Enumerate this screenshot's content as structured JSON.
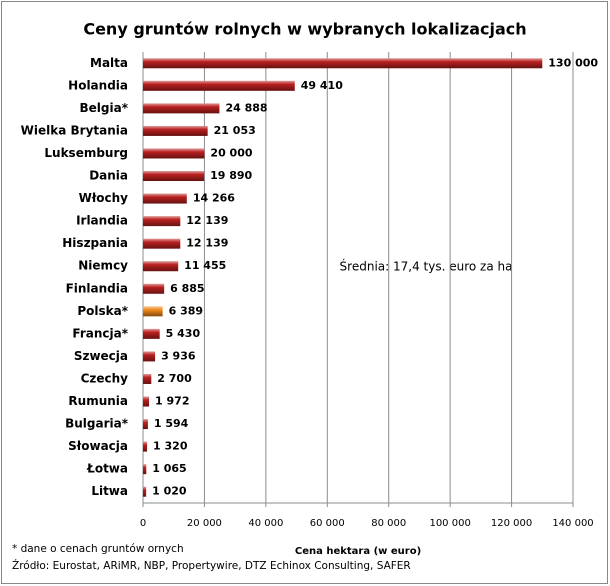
{
  "chart_data": {
    "type": "bar",
    "orientation": "horizontal",
    "title": "Ceny gruntów rolnych w wybranych lokalizacjach",
    "categories": [
      "Malta",
      "Holandia",
      "Belgia*",
      "Wielka Brytania",
      "Luksemburg",
      "Dania",
      "Włochy",
      "Irlandia",
      "Hiszpania",
      "Niemcy",
      "Finlandia",
      "Polska*",
      "Francja*",
      "Szwecja",
      "Czechy",
      "Rumunia",
      "Bulgaria*",
      "Słowacja",
      "Łotwa",
      "Litwa"
    ],
    "values": [
      130000,
      49410,
      24888,
      21053,
      20000,
      19890,
      14266,
      12139,
      12139,
      11455,
      6885,
      6389,
      5430,
      3936,
      2700,
      1972,
      1594,
      1320,
      1065,
      1020
    ],
    "value_labels": [
      "130 000",
      "49 410",
      "24 888",
      "21 053",
      "20 000",
      "19 890",
      "14 266",
      "12 139",
      "12 139",
      "11 455",
      "6 885",
      "6 389",
      "5 430",
      "3 936",
      "2 700",
      "1 972",
      "1 594",
      "1 320",
      "1 065",
      "1 020"
    ],
    "colors": [
      "#b8201f",
      "#b8201f",
      "#b8201f",
      "#b8201f",
      "#b8201f",
      "#b8201f",
      "#b8201f",
      "#b8201f",
      "#b8201f",
      "#b8201f",
      "#b8201f",
      "#f08a1c",
      "#b8201f",
      "#b8201f",
      "#b8201f",
      "#b8201f",
      "#b8201f",
      "#b8201f",
      "#b8201f",
      "#b8201f"
    ],
    "xlim": [
      0,
      140000
    ],
    "xticks": [
      0,
      {
        "value": 20000,
        "label": "20 000"
      },
      {
        "value": 40000,
        "label": "40 000"
      },
      {
        "value": 60000,
        "label": "60 000"
      },
      {
        "value": 80000,
        "label": "80 000"
      },
      {
        "value": 100000,
        "label": "100 000"
      },
      {
        "value": 120000,
        "label": "120 000"
      },
      {
        "value": 140000,
        "label": "140 000"
      }
    ],
    "grid": true,
    "xlabel": "Cena hektara (w euro)",
    "annotation": "Średnia:  17,4 tys. euro za ha",
    "footnotes": [
      "* dane o cenach gruntów ornych",
      "Źródło: Eurostat,  ARiMR,  NBP,  Propertywire,  DTZ Echinox Consulting,  SAFER"
    ]
  }
}
